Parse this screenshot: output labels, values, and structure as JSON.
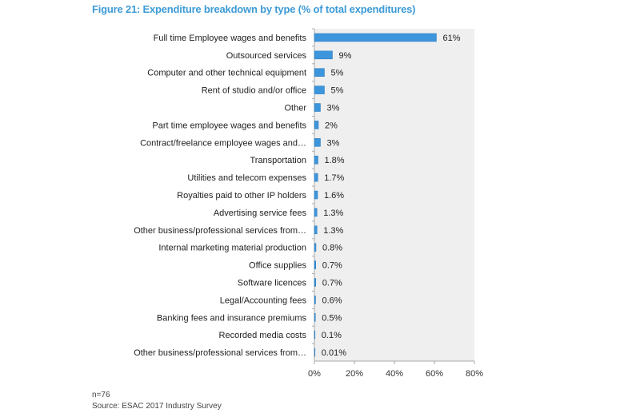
{
  "chart_data": {
    "type": "bar",
    "orientation": "horizontal",
    "title": "Figure 21: Expenditure breakdown by type (% of total expenditures)",
    "categories": [
      "Full time Employee wages and benefits",
      "Outsourced services",
      "Computer and other technical equipment",
      "Rent of studio and/or office",
      "Other",
      "Part time employee wages and benefits",
      "Contract/freelance employee wages and…",
      "Transportation",
      "Utilities and telecom expenses",
      "Royalties paid to other IP holders",
      "Advertising service fees",
      "Other business/professional services from…",
      "Internal marketing material production",
      "Office supplies",
      "Software licences",
      "Legal/Accounting fees",
      "Banking fees and insurance premiums",
      "Recorded media costs",
      "Other business/professional services from…"
    ],
    "values": [
      61,
      9,
      5,
      5,
      3,
      2,
      3,
      1.8,
      1.7,
      1.6,
      1.3,
      1.3,
      0.8,
      0.7,
      0.7,
      0.6,
      0.5,
      0.1,
      0.01
    ],
    "value_labels": [
      "61%",
      "9%",
      "5%",
      "5%",
      "3%",
      "2%",
      "3%",
      "1.8%",
      "1.7%",
      "1.6%",
      "1.3%",
      "1.3%",
      "0.8%",
      "0.7%",
      "0.7%",
      "0.6%",
      "0.5%",
      "0.1%",
      "0.01%"
    ],
    "xlim": [
      0,
      80
    ],
    "xticks": [
      0,
      20,
      40,
      60,
      80
    ],
    "xtick_labels": [
      "0%",
      "20%",
      "40%",
      "60%",
      "80%"
    ],
    "xlabel": "",
    "ylabel": "",
    "bar_color": "#3d95dc",
    "plot_bg": "#efefef"
  },
  "footer": {
    "n": "n=76",
    "source": "Source: ESAC 2017 Industry Survey"
  }
}
